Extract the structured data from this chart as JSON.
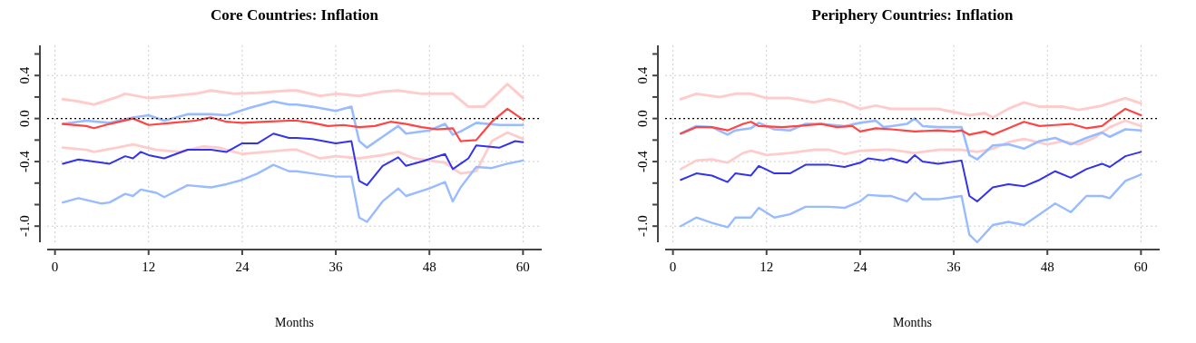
{
  "chart_data": [
    {
      "type": "line",
      "title": "Core Countries: Inflation",
      "xlabel": "Months",
      "xlim": [
        -1,
        62.4
      ],
      "ylim": [
        -1.15,
        0.68
      ],
      "xticks": [
        0,
        12,
        24,
        36,
        48,
        60
      ],
      "yticks": [
        {
          "value": 0.6,
          "label": null
        },
        {
          "value": 0.4,
          "label": "0.4"
        },
        {
          "value": 0.2,
          "label": null
        },
        {
          "value": 0,
          "label": "0.0"
        },
        {
          "value": -0.2,
          "label": null
        },
        {
          "value": -0.4,
          "label": "-0.4"
        },
        {
          "value": -0.6,
          "label": null
        },
        {
          "value": -0.8,
          "label": null
        },
        {
          "value": -1,
          "label": "-1.0"
        }
      ],
      "grid": true,
      "ref_lines": [
        {
          "axis": "y",
          "value": 0,
          "color": "#000000",
          "line_style": "dotted"
        }
      ],
      "series": [
        {
          "color": "#ffcccc",
          "x": [
            1,
            3,
            5,
            8,
            9,
            12,
            15,
            18,
            20,
            23,
            26,
            30,
            31,
            34,
            36,
            39,
            42,
            44,
            47,
            51,
            53,
            55,
            58,
            60
          ],
          "values": [
            0.18,
            0.16,
            0.13,
            0.2,
            0.23,
            0.19,
            0.21,
            0.23,
            0.26,
            0.23,
            0.24,
            0.26,
            0.26,
            0.21,
            0.23,
            0.21,
            0.25,
            0.26,
            0.23,
            0.23,
            0.11,
            0.11,
            0.32,
            0.19
          ]
        },
        {
          "color": "#ffcccc",
          "x": [
            1,
            4,
            5,
            8,
            10,
            13,
            16,
            19,
            21,
            24,
            27,
            30,
            31,
            34,
            36,
            39,
            42,
            44,
            46,
            48,
            50,
            52,
            54,
            56,
            58,
            60
          ],
          "values": [
            -0.27,
            -0.29,
            -0.31,
            -0.27,
            -0.24,
            -0.29,
            -0.31,
            -0.26,
            -0.27,
            -0.33,
            -0.31,
            -0.29,
            -0.29,
            -0.37,
            -0.35,
            -0.37,
            -0.34,
            -0.31,
            -0.37,
            -0.39,
            -0.41,
            -0.51,
            -0.49,
            -0.21,
            -0.13,
            -0.19
          ]
        },
        {
          "color": "#99bbff",
          "x": [
            1,
            4,
            7,
            10,
            12,
            14,
            17,
            20,
            22,
            25,
            28,
            30,
            31,
            33,
            36,
            38,
            39,
            40,
            42,
            44,
            45,
            48,
            50,
            51,
            52,
            54,
            57,
            60
          ],
          "values": [
            -0.05,
            -0.02,
            -0.04,
            0.01,
            0.03,
            -0.02,
            0.04,
            0.04,
            0.03,
            0.1,
            0.16,
            0.13,
            0.13,
            0.11,
            0.07,
            0.11,
            -0.21,
            -0.27,
            -0.17,
            -0.07,
            -0.14,
            -0.11,
            -0.05,
            -0.15,
            -0.12,
            -0.04,
            -0.06,
            -0.06
          ]
        },
        {
          "color": "#99bbff",
          "x": [
            1,
            3,
            6,
            7,
            9,
            10,
            11,
            13,
            14,
            17,
            20,
            22,
            24,
            26,
            28,
            30,
            31,
            33,
            36,
            38,
            39,
            40,
            42,
            44,
            45,
            48,
            50,
            51,
            52,
            54,
            56,
            58,
            60
          ],
          "values": [
            -0.78,
            -0.74,
            -0.79,
            -0.78,
            -0.7,
            -0.72,
            -0.66,
            -0.69,
            -0.73,
            -0.62,
            -0.64,
            -0.61,
            -0.57,
            -0.51,
            -0.43,
            -0.49,
            -0.49,
            -0.51,
            -0.54,
            -0.54,
            -0.92,
            -0.96,
            -0.77,
            -0.65,
            -0.72,
            -0.65,
            -0.59,
            -0.77,
            -0.64,
            -0.45,
            -0.46,
            -0.42,
            -0.39
          ]
        },
        {
          "color": "#ff4444",
          "x": [
            1,
            4,
            5,
            7,
            10,
            12,
            15,
            18,
            20,
            22,
            24,
            27,
            30,
            31,
            33,
            35,
            37,
            39,
            41,
            43,
            45,
            47,
            49,
            51,
            52,
            54,
            56,
            58,
            60
          ],
          "values": [
            -0.05,
            -0.07,
            -0.09,
            -0.05,
            0,
            -0.06,
            -0.04,
            -0.02,
            0.01,
            -0.03,
            -0.04,
            -0.03,
            -0.02,
            -0.02,
            -0.04,
            -0.07,
            -0.06,
            -0.08,
            -0.07,
            -0.03,
            -0.05,
            -0.08,
            -0.1,
            -0.09,
            -0.21,
            -0.2,
            -0.03,
            0.09,
            -0.01
          ]
        },
        {
          "color": "#3333ee",
          "x": [
            1,
            3,
            6,
            7,
            9,
            10,
            11,
            12,
            14,
            17,
            20,
            22,
            23,
            24,
            26,
            28,
            30,
            31,
            33,
            36,
            38,
            39,
            40,
            42,
            44,
            45,
            47,
            50,
            51,
            53,
            54,
            57,
            59,
            60
          ],
          "values": [
            -0.42,
            -0.38,
            -0.41,
            -0.42,
            -0.35,
            -0.37,
            -0.31,
            -0.34,
            -0.37,
            -0.29,
            -0.29,
            -0.31,
            -0.27,
            -0.23,
            -0.23,
            -0.14,
            -0.18,
            -0.18,
            -0.19,
            -0.23,
            -0.21,
            -0.58,
            -0.62,
            -0.44,
            -0.36,
            -0.44,
            -0.4,
            -0.33,
            -0.47,
            -0.37,
            -0.25,
            -0.27,
            -0.21,
            -0.22
          ]
        }
      ]
    },
    {
      "type": "line",
      "title": "Periphery Countries: Inflation",
      "xlabel": "Months",
      "xlim": [
        -1,
        62.4
      ],
      "ylim": [
        -1.15,
        0.68
      ],
      "xticks": [
        0,
        12,
        24,
        36,
        48,
        60
      ],
      "yticks": [
        {
          "value": 0.6,
          "label": null
        },
        {
          "value": 0.4,
          "label": "0.4"
        },
        {
          "value": 0.2,
          "label": null
        },
        {
          "value": 0,
          "label": "0.0"
        },
        {
          "value": -0.2,
          "label": null
        },
        {
          "value": -0.4,
          "label": "-0.4"
        },
        {
          "value": -0.6,
          "label": null
        },
        {
          "value": -0.8,
          "label": null
        },
        {
          "value": -1,
          "label": "-1.0"
        }
      ],
      "grid": true,
      "ref_lines": [
        {
          "axis": "y",
          "value": 0,
          "color": "#000000",
          "line_style": "dotted"
        }
      ],
      "series": [
        {
          "color": "#ffcccc",
          "x": [
            1,
            3,
            6,
            8,
            10,
            12,
            15,
            18,
            20,
            22,
            24,
            26,
            28,
            29,
            32,
            34,
            36,
            38,
            40,
            41,
            43,
            45,
            47,
            50,
            52,
            55,
            58,
            60
          ],
          "values": [
            0.18,
            0.23,
            0.2,
            0.23,
            0.23,
            0.19,
            0.19,
            0.15,
            0.18,
            0.15,
            0.09,
            0.12,
            0.09,
            0.09,
            0.09,
            0.09,
            0.06,
            0.03,
            0.05,
            0.01,
            0.09,
            0.15,
            0.11,
            0.11,
            0.08,
            0.12,
            0.19,
            0.14
          ]
        },
        {
          "color": "#ffcccc",
          "x": [
            1,
            3,
            5,
            7,
            9,
            10,
            12,
            15,
            18,
            20,
            22,
            24,
            27,
            28,
            31,
            34,
            37,
            39,
            41,
            43,
            45,
            48,
            50,
            52,
            54,
            56,
            58,
            60
          ],
          "values": [
            -0.47,
            -0.39,
            -0.38,
            -0.41,
            -0.32,
            -0.3,
            -0.34,
            -0.32,
            -0.29,
            -0.29,
            -0.33,
            -0.3,
            -0.29,
            -0.29,
            -0.32,
            -0.29,
            -0.29,
            -0.31,
            -0.28,
            -0.22,
            -0.19,
            -0.24,
            -0.21,
            -0.24,
            -0.18,
            -0.08,
            -0.02,
            -0.07
          ]
        },
        {
          "color": "#99bbff",
          "x": [
            1,
            3,
            5,
            7,
            8,
            10,
            11,
            13,
            15,
            17,
            19,
            22,
            24,
            26,
            27,
            28,
            30,
            31,
            32,
            34,
            37,
            38,
            39,
            41,
            43,
            45,
            47,
            49,
            51,
            53,
            55,
            56,
            58,
            60
          ],
          "values": [
            -0.14,
            -0.07,
            -0.08,
            -0.15,
            -0.11,
            -0.09,
            -0.04,
            -0.1,
            -0.11,
            -0.05,
            -0.05,
            -0.07,
            -0.04,
            -0.02,
            -0.08,
            -0.07,
            -0.05,
            0,
            -0.07,
            -0.08,
            -0.08,
            -0.34,
            -0.38,
            -0.25,
            -0.24,
            -0.28,
            -0.21,
            -0.18,
            -0.24,
            -0.18,
            -0.13,
            -0.17,
            -0.1,
            -0.11
          ]
        },
        {
          "color": "#99bbff",
          "x": [
            1,
            3,
            5,
            7,
            8,
            10,
            11,
            13,
            15,
            17,
            20,
            22,
            24,
            25,
            27,
            28,
            30,
            31,
            32,
            34,
            37,
            38,
            39,
            41,
            43,
            45,
            47,
            49,
            51,
            53,
            55,
            56,
            58,
            60
          ],
          "values": [
            -1,
            -0.92,
            -0.97,
            -1.01,
            -0.92,
            -0.92,
            -0.83,
            -0.92,
            -0.89,
            -0.82,
            -0.82,
            -0.83,
            -0.77,
            -0.71,
            -0.72,
            -0.72,
            -0.77,
            -0.69,
            -0.75,
            -0.75,
            -0.72,
            -1.08,
            -1.15,
            -0.99,
            -0.96,
            -0.99,
            -0.89,
            -0.79,
            -0.87,
            -0.72,
            -0.72,
            -0.74,
            -0.58,
            -0.52
          ]
        },
        {
          "color": "#ff4444",
          "x": [
            1,
            3,
            5,
            7,
            9,
            10,
            11,
            14,
            16,
            19,
            21,
            23,
            24,
            26,
            28,
            31,
            34,
            36,
            37,
            38,
            40,
            41,
            45,
            47,
            49,
            51,
            53,
            55,
            57,
            58,
            60
          ],
          "values": [
            -0.14,
            -0.08,
            -0.08,
            -0.11,
            -0.05,
            -0.03,
            -0.07,
            -0.08,
            -0.07,
            -0.05,
            -0.08,
            -0.07,
            -0.12,
            -0.09,
            -0.1,
            -0.12,
            -0.11,
            -0.12,
            -0.11,
            -0.15,
            -0.12,
            -0.15,
            -0.03,
            -0.07,
            -0.06,
            -0.05,
            -0.09,
            -0.07,
            0.04,
            0.09,
            0.03
          ]
        },
        {
          "color": "#3333ee",
          "x": [
            1,
            3,
            5,
            7,
            8,
            9,
            10,
            11,
            13,
            15,
            17,
            20,
            22,
            24,
            25,
            27,
            28,
            30,
            31,
            32,
            34,
            37,
            38,
            39,
            41,
            43,
            45,
            47,
            49,
            51,
            53,
            55,
            56,
            58,
            60
          ],
          "values": [
            -0.57,
            -0.51,
            -0.53,
            -0.59,
            -0.51,
            -0.52,
            -0.53,
            -0.44,
            -0.51,
            -0.51,
            -0.43,
            -0.43,
            -0.45,
            -0.41,
            -0.37,
            -0.39,
            -0.37,
            -0.41,
            -0.34,
            -0.4,
            -0.42,
            -0.39,
            -0.72,
            -0.77,
            -0.64,
            -0.61,
            -0.63,
            -0.57,
            -0.49,
            -0.55,
            -0.47,
            -0.42,
            -0.45,
            -0.35,
            -0.31
          ]
        }
      ]
    }
  ]
}
